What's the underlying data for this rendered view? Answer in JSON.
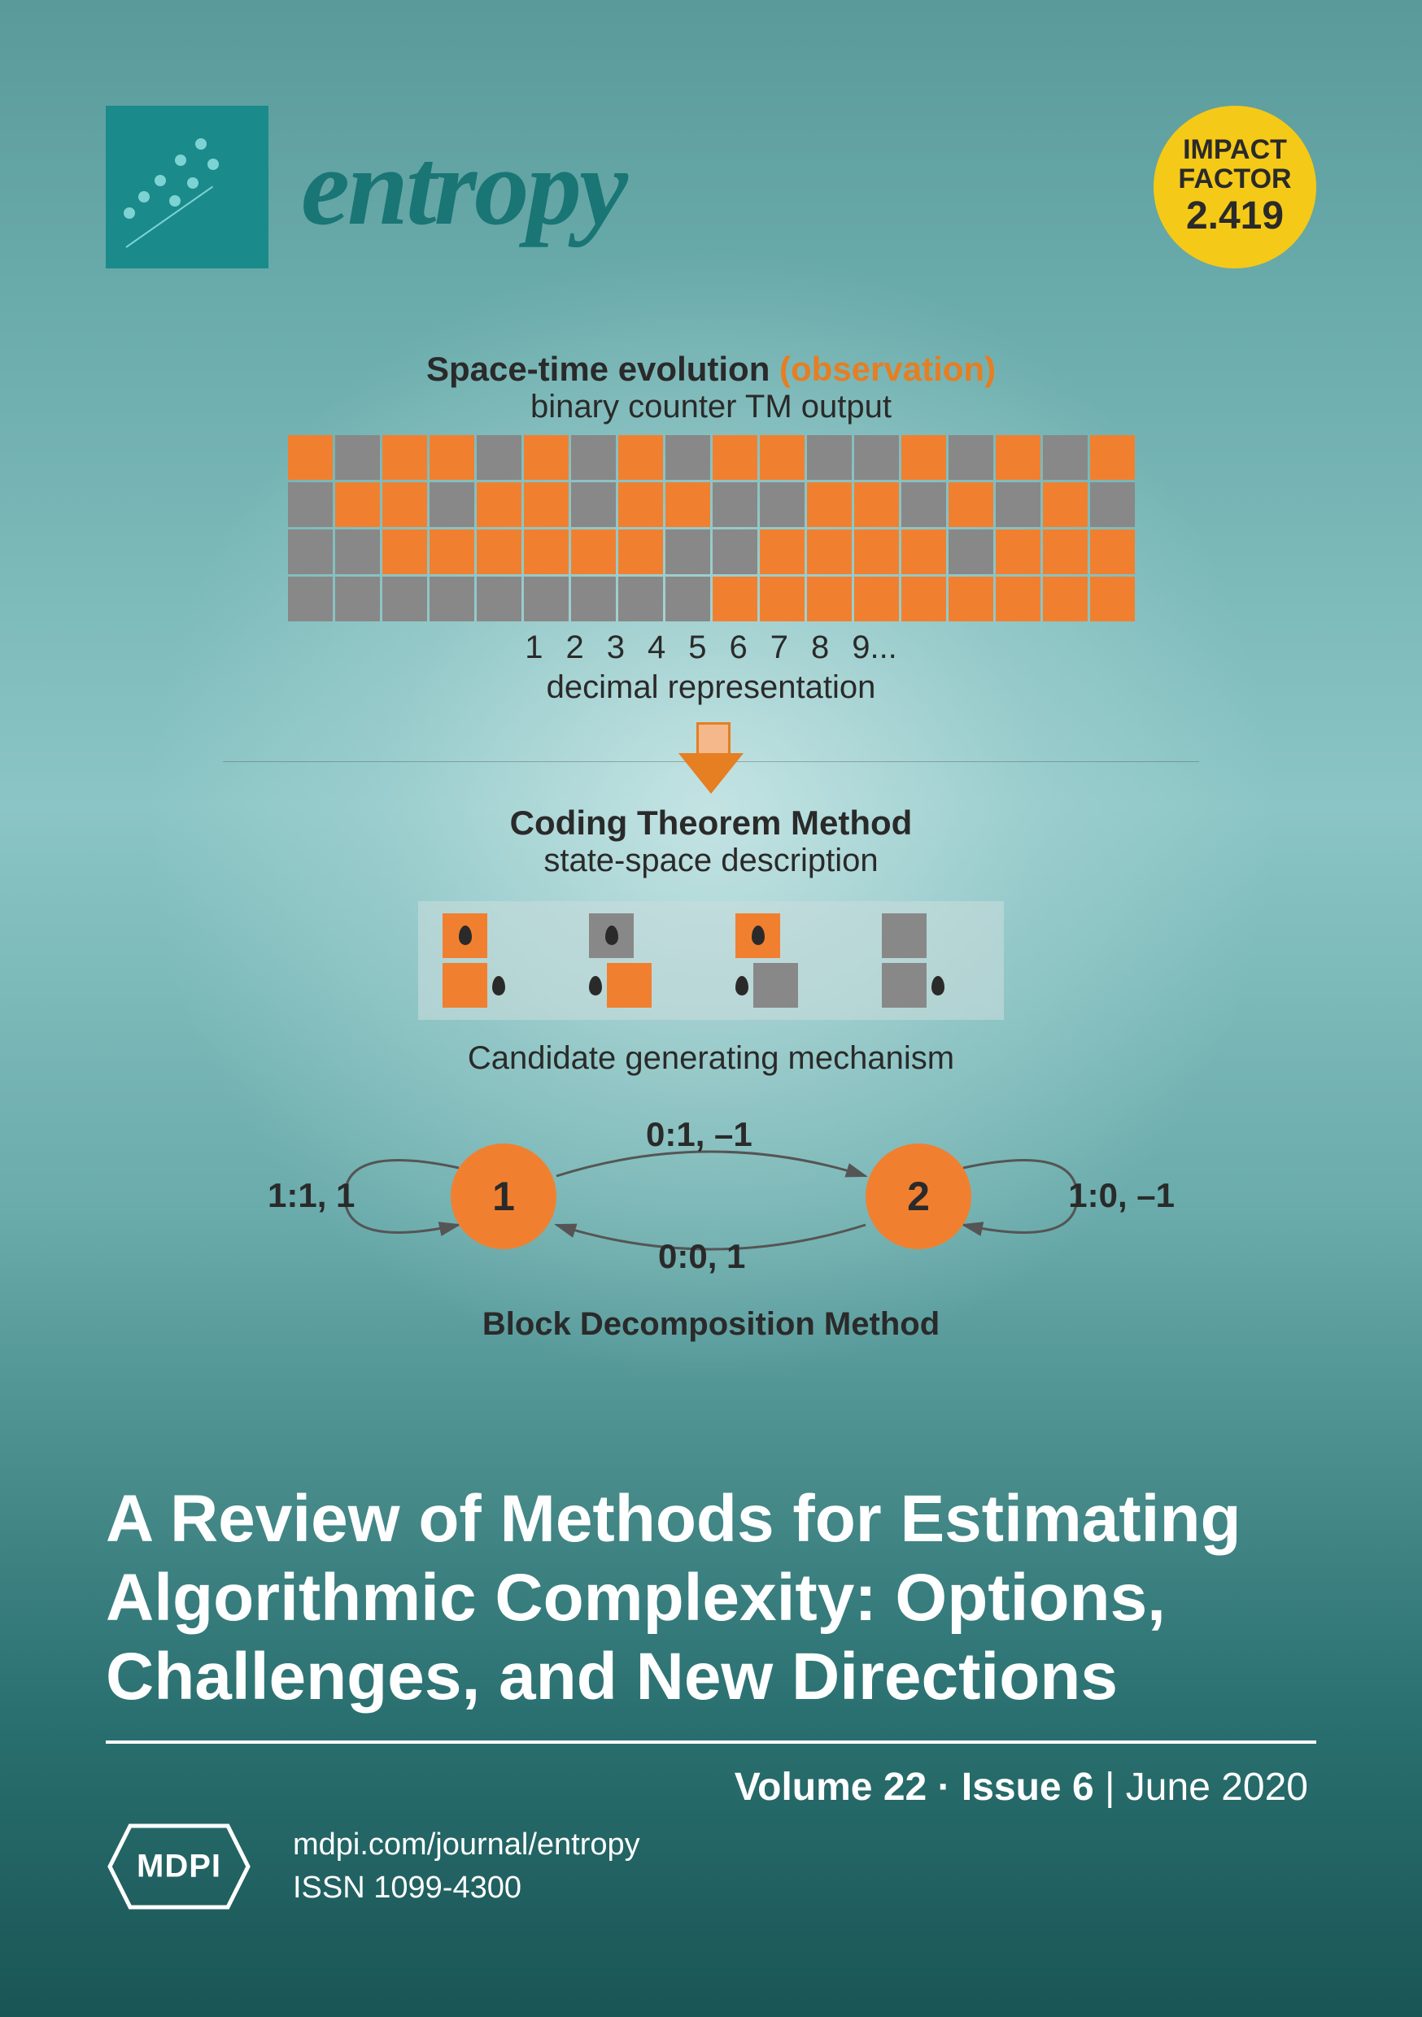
{
  "journal": {
    "name": "entropy",
    "color": "#1a7575"
  },
  "impact": {
    "label1": "IMPACT",
    "label2": "FACTOR",
    "value": "2.419",
    "bg_color": "#f5c917"
  },
  "diagram": {
    "title_main": "Space-time evolution ",
    "title_obs": "(observation)",
    "subtitle1": "binary counter TM output",
    "grid": {
      "cols": 18,
      "rows": 4,
      "cell_on_color": "#f08030",
      "cell_off_color": "#888888",
      "pattern": [
        [
          1,
          0,
          1,
          1,
          0,
          1,
          0,
          1,
          0,
          1,
          1,
          0,
          0,
          1,
          0,
          1,
          0,
          1
        ],
        [
          0,
          1,
          1,
          0,
          1,
          1,
          0,
          1,
          1,
          0,
          0,
          1,
          1,
          0,
          1,
          0,
          1,
          0
        ],
        [
          0,
          0,
          1,
          1,
          1,
          1,
          1,
          1,
          0,
          0,
          1,
          1,
          1,
          1,
          0,
          1,
          1,
          1
        ],
        [
          0,
          0,
          0,
          0,
          0,
          0,
          0,
          0,
          0,
          1,
          1,
          1,
          1,
          1,
          1,
          1,
          1,
          1
        ]
      ]
    },
    "numbers": [
      "1",
      "2",
      "3",
      "4",
      "5",
      "6",
      "7",
      "8",
      "9..."
    ],
    "dec_label": "decimal representation",
    "ctm_title": "Coding Theorem Method",
    "ctm_sub": "state-space description",
    "candidates": [
      {
        "top_on": true,
        "bot_on": true,
        "marker_in_top": true,
        "marker_right_bot": true
      },
      {
        "top_on": false,
        "bot_on": true,
        "marker_in_top": true,
        "marker_left_bot": true
      },
      {
        "top_on": true,
        "bot_on": false,
        "marker_in_top": true,
        "marker_left_bot": true
      },
      {
        "top_on": false,
        "bot_on": false,
        "marker_in_top": false,
        "marker_right_bot": true
      }
    ],
    "candidate_label": "Candidate generating mechanism",
    "states": {
      "node1": "1",
      "node2": "2",
      "edge_top": "0:1, –1",
      "edge_bot": "0:0, 1",
      "self1": "1:1, 1",
      "self2": "1:0, –1"
    },
    "bdm_label": "Block Decomposition Method"
  },
  "article": {
    "title": "A Review of Methods for Estimating Algorithmic Complexity: Options, Challenges, and New Directions"
  },
  "issue": {
    "volume": "Volume 22",
    "sep": " · ",
    "issue_no": "Issue 6",
    "date": "June 2020"
  },
  "footer": {
    "publisher": "MDPI",
    "url": "mdpi.com/journal/entropy",
    "issn": "ISSN 1099-4300"
  },
  "colors": {
    "orange": "#f08030",
    "teal_dark": "#1a7575",
    "white": "#ffffff"
  }
}
